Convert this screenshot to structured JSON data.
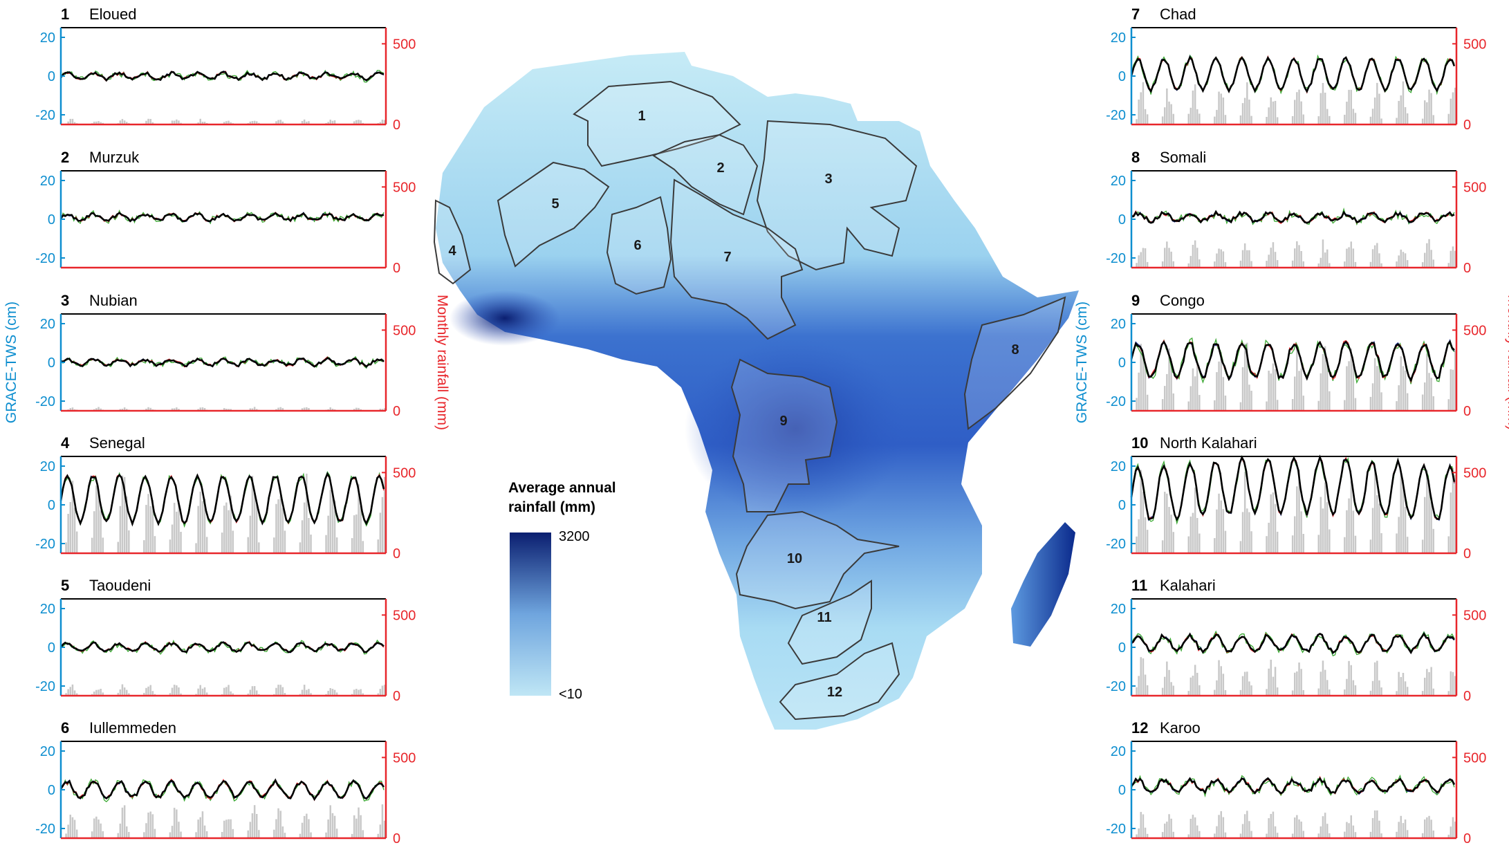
{
  "colors": {
    "tws_axis": "#0d8ecf",
    "rain_axis": "#e8262b",
    "rain_bars": "#c8c8c8",
    "series_black": "#000000",
    "series_green": "#3aa832",
    "series_blue": "#2a3c9a",
    "series_red": "#e8262b",
    "rain_map_low": "#bfe6f5",
    "rain_map_high": "#0b1f70"
  },
  "axis_labels": {
    "left": "GRACE-TWS (cm)",
    "right": "Monthly rainfall (mm)"
  },
  "legend": {
    "title_line1": "Average annual",
    "title_line2": "rainfall (mm)",
    "max_label": "3200",
    "min_label": "<10"
  },
  "map_labels": [
    "1",
    "2",
    "3",
    "4",
    "5",
    "6",
    "7",
    "8",
    "9",
    "10",
    "11",
    "12"
  ],
  "chart_data": [
    {
      "type": "line",
      "id": "1",
      "name": "Eloued",
      "amp": 1.5,
      "mean": 0,
      "noise": 1.5,
      "rain_scale": 0.06,
      "left_ticks": [
        "20",
        "0",
        "-20"
      ],
      "right_ticks": [
        "500",
        "0"
      ],
      "ylim": [
        -25,
        25
      ],
      "ylim_right": [
        0,
        600
      ],
      "show_ylabel": false
    },
    {
      "type": "line",
      "id": "2",
      "name": "Murzuk",
      "amp": 1.5,
      "mean": 1,
      "noise": 1.5,
      "rain_scale": 0.0,
      "left_ticks": [
        "20",
        "0",
        "-20"
      ],
      "right_ticks": [
        "500",
        "0"
      ],
      "ylim": [
        -25,
        25
      ],
      "ylim_right": [
        0,
        600
      ],
      "show_ylabel": false
    },
    {
      "type": "line",
      "id": "3",
      "name": "Nubian",
      "amp": 1.5,
      "mean": 0,
      "noise": 1.5,
      "rain_scale": 0.04,
      "left_ticks": [
        "20",
        "0",
        "-20"
      ],
      "right_ticks": [
        "500",
        "0"
      ],
      "ylim": [
        -25,
        25
      ],
      "ylim_right": [
        0,
        600
      ],
      "show_ylabel": true
    },
    {
      "type": "line",
      "id": "4",
      "name": "Senegal",
      "amp": 12,
      "mean": 3,
      "noise": 2,
      "rain_scale": 0.85,
      "left_ticks": [
        "20",
        "0",
        "-20"
      ],
      "right_ticks": [
        "500",
        "0"
      ],
      "ylim": [
        -25,
        25
      ],
      "ylim_right": [
        0,
        600
      ],
      "show_ylabel": false
    },
    {
      "type": "line",
      "id": "5",
      "name": "Taoudeni",
      "amp": 2,
      "mean": 0,
      "noise": 1.5,
      "rain_scale": 0.12,
      "left_ticks": [
        "20",
        "0",
        "-20"
      ],
      "right_ticks": [
        "500",
        "0"
      ],
      "ylim": [
        -25,
        25
      ],
      "ylim_right": [
        0,
        600
      ],
      "show_ylabel": false
    },
    {
      "type": "line",
      "id": "6",
      "name": "Iullemmeden",
      "amp": 4,
      "mean": 0,
      "noise": 2,
      "rain_scale": 0.35,
      "left_ticks": [
        "20",
        "0",
        "-20"
      ],
      "right_ticks": [
        "500",
        "0"
      ],
      "ylim": [
        -25,
        25
      ],
      "ylim_right": [
        0,
        600
      ],
      "show_ylabel": false
    },
    {
      "type": "line",
      "id": "7",
      "name": "Chad",
      "amp": 8,
      "mean": 1,
      "noise": 2,
      "rain_scale": 0.45,
      "left_ticks": [
        "20",
        "0",
        "-20"
      ],
      "right_ticks": [
        "500",
        "0"
      ],
      "ylim": [
        -25,
        25
      ],
      "ylim_right": [
        0,
        600
      ],
      "show_ylabel": false
    },
    {
      "type": "line",
      "id": "8",
      "name": "Somali",
      "amp": 2,
      "mean": 1,
      "noise": 2,
      "rain_scale": 0.3,
      "left_ticks": [
        "20",
        "0",
        "-20"
      ],
      "right_ticks": [
        "500",
        "0"
      ],
      "ylim": [
        -25,
        25
      ],
      "ylim_right": [
        0,
        600
      ],
      "show_ylabel": false
    },
    {
      "type": "line",
      "id": "9",
      "name": "Congo",
      "amp": 9,
      "mean": 1,
      "noise": 3,
      "rain_scale": 0.75,
      "left_ticks": [
        "20",
        "0",
        "-20"
      ],
      "right_ticks": [
        "500",
        "0"
      ],
      "ylim": [
        -25,
        25
      ],
      "ylim_right": [
        0,
        600
      ],
      "show_ylabel": true
    },
    {
      "type": "line",
      "id": "10",
      "name": "North Kalahari",
      "amp": 14,
      "mean": 5,
      "noise": 2.5,
      "rain_scale": 0.9,
      "left_ticks": [
        "20",
        "0",
        "-20"
      ],
      "right_ticks": [
        "500",
        "0"
      ],
      "ylim": [
        -25,
        25
      ],
      "ylim_right": [
        0,
        600
      ],
      "show_ylabel": false
    },
    {
      "type": "line",
      "id": "11",
      "name": "Kalahari",
      "amp": 4,
      "mean": 2,
      "noise": 2,
      "rain_scale": 0.4,
      "left_ticks": [
        "20",
        "0",
        "-20"
      ],
      "right_ticks": [
        "500",
        "0"
      ],
      "ylim": [
        -25,
        25
      ],
      "ylim_right": [
        0,
        600
      ],
      "show_ylabel": false
    },
    {
      "type": "line",
      "id": "12",
      "name": "Karoo",
      "amp": 3,
      "mean": 2,
      "noise": 2,
      "rain_scale": 0.3,
      "left_ticks": [
        "20",
        "0",
        "-20"
      ],
      "right_ticks": [
        "500",
        "0"
      ],
      "ylim": [
        -25,
        25
      ],
      "ylim_right": [
        0,
        600
      ],
      "show_ylabel": false
    }
  ]
}
